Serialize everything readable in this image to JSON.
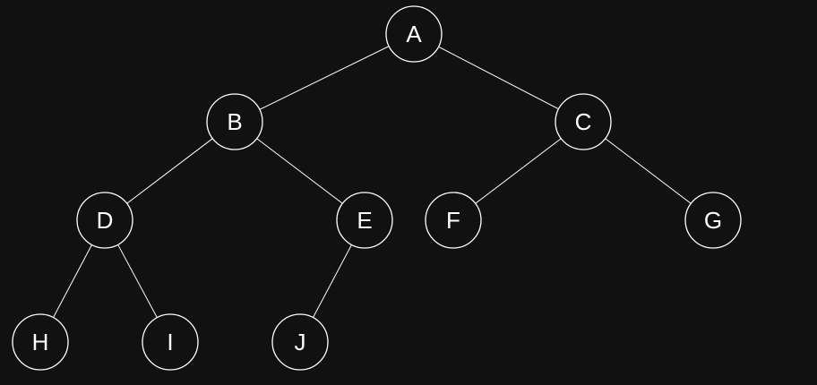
{
  "diagram": {
    "background": "#111111",
    "stroke_color": "#ffffff",
    "nodes": [
      {
        "id": "A",
        "label": "A"
      },
      {
        "id": "B",
        "label": "B"
      },
      {
        "id": "C",
        "label": "C"
      },
      {
        "id": "D",
        "label": "D"
      },
      {
        "id": "E",
        "label": "E"
      },
      {
        "id": "F",
        "label": "F"
      },
      {
        "id": "G",
        "label": "G"
      },
      {
        "id": "H",
        "label": "H"
      },
      {
        "id": "I",
        "label": "I"
      },
      {
        "id": "J",
        "label": "J"
      }
    ],
    "edges": [
      {
        "from": "A",
        "to": "B"
      },
      {
        "from": "A",
        "to": "C"
      },
      {
        "from": "B",
        "to": "D"
      },
      {
        "from": "B",
        "to": "E"
      },
      {
        "from": "C",
        "to": "F"
      },
      {
        "from": "C",
        "to": "G"
      },
      {
        "from": "D",
        "to": "H"
      },
      {
        "from": "D",
        "to": "I"
      },
      {
        "from": "E",
        "to": "J"
      }
    ]
  }
}
